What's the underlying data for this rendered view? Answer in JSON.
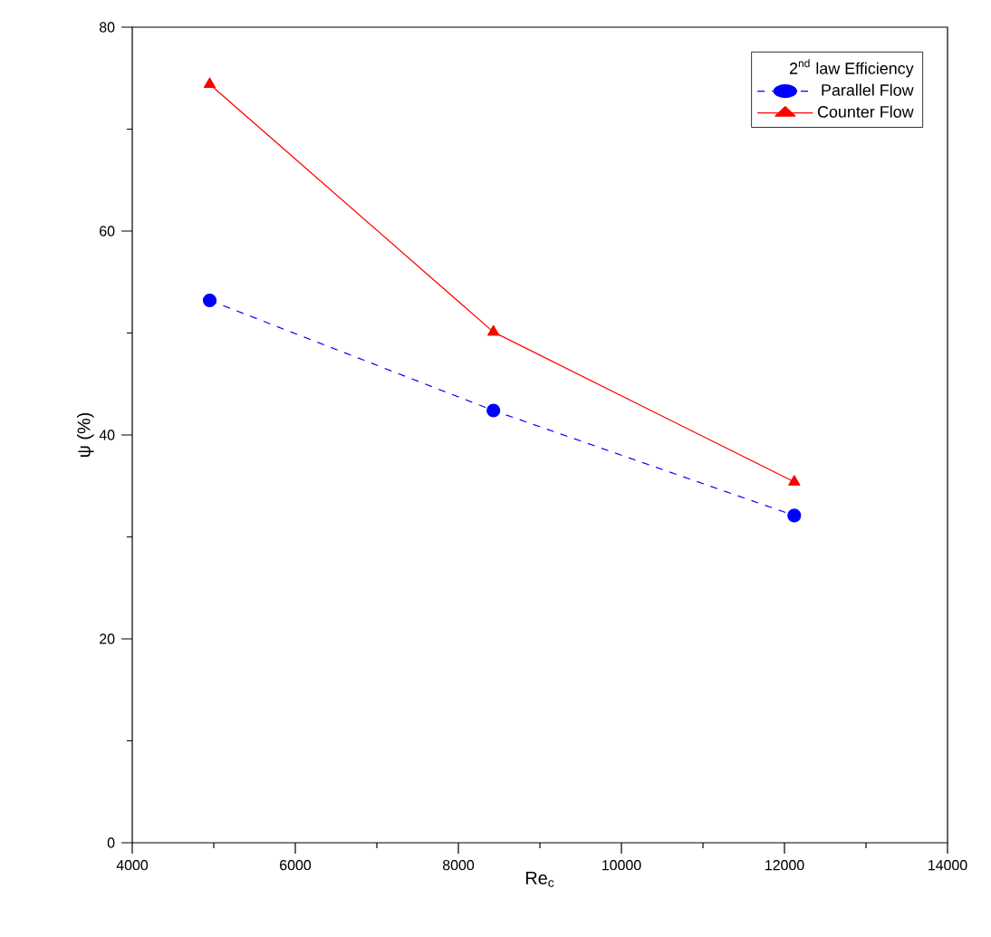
{
  "chart_data": {
    "type": "line",
    "xlabel": "Re$_{c}$",
    "ylabel": "ψ (%)",
    "legend_title": "2$^{nd}$ law Efficiency",
    "x": [
      4950,
      8430,
      12120
    ],
    "series": [
      {
        "name": "Parallel Flow",
        "color": "#0000ff",
        "values": [
          53.2,
          42.4,
          32.1
        ],
        "marker": "circle",
        "line_style": "dashed"
      },
      {
        "name": "Counter Flow",
        "color": "#ff0000",
        "values": [
          74.4,
          50.1,
          35.4
        ],
        "marker": "triangle",
        "line_style": "solid"
      }
    ],
    "xlim": [
      4000,
      14000
    ],
    "ylim": [
      0,
      80
    ],
    "xticks": [
      4000,
      6000,
      8000,
      10000,
      12000,
      14000
    ],
    "yticks": [
      0,
      20,
      40,
      60,
      80
    ],
    "legend": "top right",
    "grid": false
  }
}
